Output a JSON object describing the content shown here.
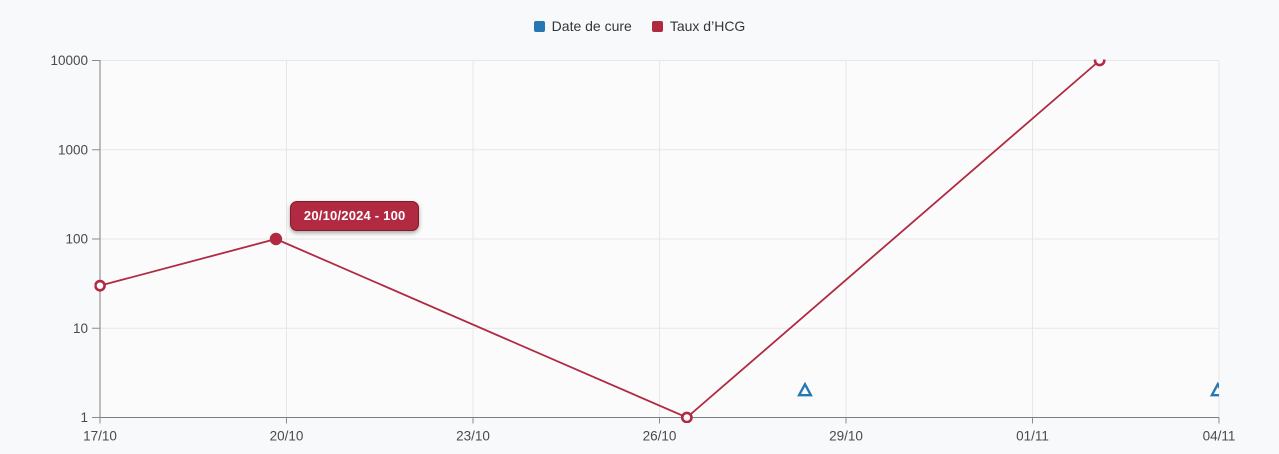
{
  "chart_data": {
    "type": "line",
    "title": "",
    "legend_position": "top-center",
    "grid": true,
    "x_axis": {
      "tick_labels": [
        "17/10",
        "20/10",
        "23/10",
        "26/10",
        "29/10",
        "01/11",
        "04/11"
      ],
      "days_per_tick": 3,
      "total_days": 18
    },
    "y_axis": {
      "scale": "log10",
      "tick_labels": [
        "1",
        "10",
        "100",
        "1000",
        "10000"
      ],
      "tick_values": [
        1,
        10,
        100,
        1000,
        10000
      ],
      "range": [
        1,
        10000
      ]
    },
    "series": [
      {
        "name": "Date de cure",
        "color": "#2778b2",
        "marker": "open-triangle",
        "show_line": false,
        "points": [
          {
            "day_offset": 11.34,
            "value": 2,
            "approx_date": "28/10"
          },
          {
            "day_offset": 17.98,
            "value": 2,
            "approx_date": "04/11"
          }
        ]
      },
      {
        "name": "Taux d’HCG",
        "color": "#b02a42",
        "marker": "open-circle",
        "show_line": true,
        "points": [
          {
            "day_offset": 0,
            "value": 30,
            "approx_date": "17/10"
          },
          {
            "day_offset": 2.83,
            "value": 100,
            "approx_date": "20/10",
            "highlighted": true
          },
          {
            "day_offset": 9.44,
            "value": 1,
            "approx_date": "26/10"
          },
          {
            "day_offset": 16.08,
            "value": 10000,
            "approx_date": "02/11"
          }
        ]
      }
    ],
    "tooltip": {
      "text": "20/10/2024 - 100",
      "background": "#b12a41",
      "border_color": "#7e1c2d",
      "text_color": "#ffffff"
    }
  }
}
